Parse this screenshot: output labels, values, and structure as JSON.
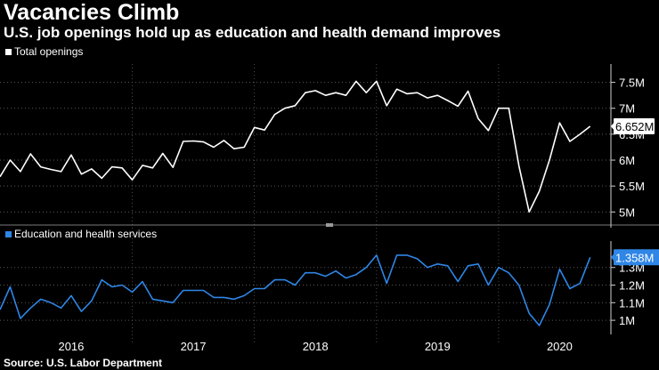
{
  "title": "Vacancies Climb",
  "subtitle": "U.S. job openings hold up as education and health demand improves",
  "source": "Source: U.S. Labor Department",
  "colors": {
    "background": "#000000",
    "total": "#ffffff",
    "education": "#2f86e6"
  },
  "chart_data": [
    {
      "type": "line",
      "legend": "Total openings",
      "legend_position": "top-left",
      "color": "#ffffff",
      "ylim": [
        4.8,
        7.75
      ],
      "yticks": [
        5,
        5.5,
        6,
        6.5,
        7,
        7.5
      ],
      "ytick_labels": [
        "5M",
        "5.5M",
        "6M",
        "6.5M",
        "7M",
        "7.5M"
      ],
      "last_value_label": "6.652M",
      "x_start": 2015.917,
      "x_step": 0.08333,
      "values": [
        5.68,
        6.0,
        5.78,
        6.12,
        5.87,
        5.82,
        5.78,
        6.1,
        5.73,
        5.83,
        5.65,
        5.87,
        5.85,
        5.62,
        5.9,
        5.85,
        6.13,
        5.86,
        6.36,
        6.37,
        6.35,
        6.25,
        6.38,
        6.22,
        6.25,
        6.63,
        6.58,
        6.88,
        7.0,
        7.05,
        7.3,
        7.34,
        7.25,
        7.3,
        7.25,
        7.52,
        7.3,
        7.52,
        7.05,
        7.37,
        7.28,
        7.3,
        7.2,
        7.25,
        7.15,
        7.04,
        7.33,
        6.8,
        6.57,
        7.0,
        7.0,
        5.89,
        5.0,
        5.4,
        6.0,
        6.72,
        6.36,
        6.5,
        6.652
      ]
    },
    {
      "type": "line",
      "legend": "Education and health services",
      "legend_position": "top-left",
      "color": "#2f86e6",
      "ylim": [
        0.95,
        1.42
      ],
      "yticks": [
        1.0,
        1.1,
        1.2,
        1.3
      ],
      "ytick_labels": [
        "1M",
        "1.1M",
        "1.2M",
        "1.3M"
      ],
      "last_value_label": "1.358M",
      "x_start": 2015.917,
      "x_step": 0.08333,
      "values": [
        1.06,
        1.19,
        1.01,
        1.07,
        1.12,
        1.1,
        1.07,
        1.14,
        1.05,
        1.11,
        1.23,
        1.19,
        1.2,
        1.16,
        1.22,
        1.12,
        1.11,
        1.1,
        1.17,
        1.17,
        1.17,
        1.13,
        1.13,
        1.12,
        1.14,
        1.18,
        1.18,
        1.23,
        1.23,
        1.2,
        1.27,
        1.27,
        1.25,
        1.28,
        1.24,
        1.26,
        1.3,
        1.37,
        1.21,
        1.37,
        1.37,
        1.35,
        1.3,
        1.32,
        1.31,
        1.22,
        1.31,
        1.32,
        1.2,
        1.3,
        1.27,
        1.2,
        1.04,
        0.97,
        1.09,
        1.29,
        1.18,
        1.21,
        1.358
      ]
    }
  ],
  "x_axis": {
    "labels": [
      "2016",
      "2017",
      "2018",
      "2019",
      "2020"
    ],
    "label_x": [
      2016.5,
      2017.5,
      2018.5,
      2019.5,
      2020.5
    ],
    "boundaries": [
      2017,
      2018,
      2019,
      2020
    ],
    "xlim": [
      2015.917,
      2020.92
    ]
  }
}
